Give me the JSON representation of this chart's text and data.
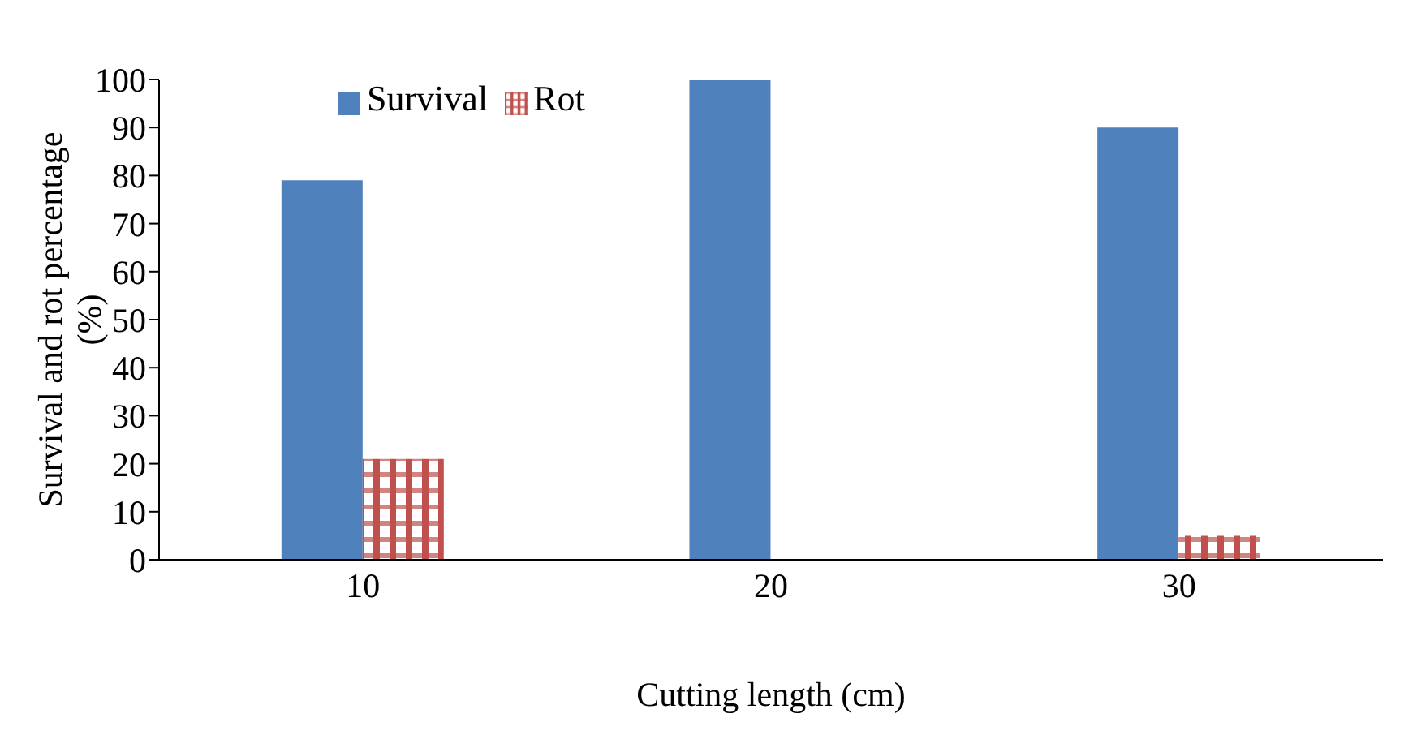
{
  "chart_data": {
    "type": "bar",
    "xlabel": "Cutting length (cm)",
    "ylabel": "Survival and rot percentage (%)",
    "categories": [
      "10",
      "20",
      "30"
    ],
    "series": [
      {
        "name": "Survival",
        "color": "#4f81bd",
        "values": [
          79,
          100,
          90
        ]
      },
      {
        "name": "Rot",
        "color": "#c0504d",
        "values": [
          21,
          0,
          5
        ]
      }
    ],
    "ylim": [
      0,
      100
    ],
    "yticks": [
      0,
      10,
      20,
      30,
      40,
      50,
      60,
      70,
      80,
      90,
      100
    ],
    "grid": false,
    "legend": "top left"
  }
}
